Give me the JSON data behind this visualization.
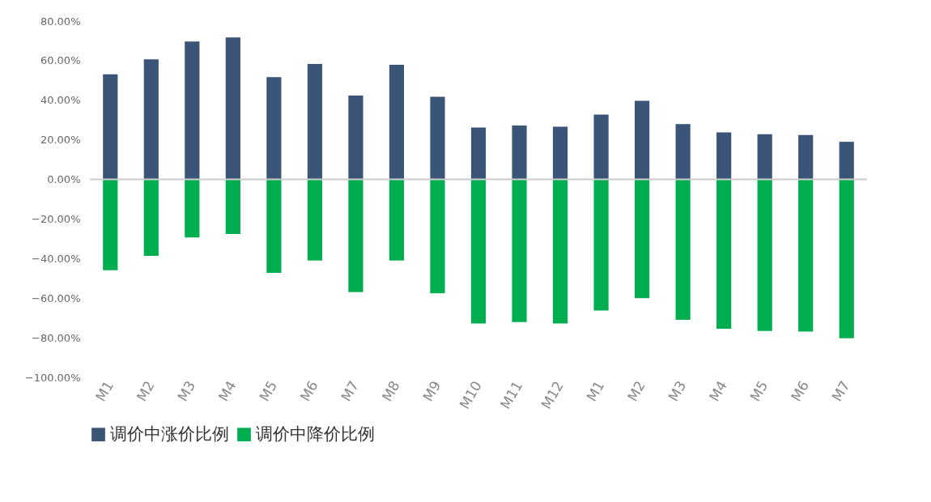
{
  "chart_data": {
    "type": "bar",
    "stacked": true,
    "categories": [
      "M1",
      "M2",
      "M3",
      "M4",
      "M5",
      "M6",
      "M7",
      "M8",
      "M9",
      "M10",
      "M11",
      "M12",
      "M1",
      "M2",
      "M3",
      "M4",
      "M5",
      "M6",
      "M7"
    ],
    "series": [
      {
        "name": "调价中涨价比例",
        "color": "#3a5578",
        "values": [
          53.1,
          60.7,
          69.7,
          71.7,
          51.7,
          58.3,
          42.4,
          57.9,
          41.7,
          26.2,
          27.2,
          26.6,
          32.8,
          39.7,
          27.9,
          23.8,
          22.8,
          22.4,
          19.0
        ]
      },
      {
        "name": "调价中降价比例",
        "color": "#00ae4f",
        "values": [
          -45.9,
          -38.6,
          -29.3,
          -27.6,
          -47.2,
          -41.0,
          -56.9,
          -41.0,
          -57.6,
          -72.8,
          -72.1,
          -72.8,
          -66.2,
          -60.0,
          -71.0,
          -75.5,
          -76.6,
          -76.9,
          -80.3
        ]
      }
    ],
    "ylim": [
      -100,
      80
    ],
    "yticks": [
      {
        "value": -100,
        "label": "−100.00%"
      },
      {
        "value": -80,
        "label": "−80.00%"
      },
      {
        "value": -60,
        "label": "−60.00%"
      },
      {
        "value": -40,
        "label": "−40.00%"
      },
      {
        "value": -20,
        "label": "−20.00%"
      },
      {
        "value": 0,
        "label": "0.00%"
      },
      {
        "value": 20,
        "label": "20.00%"
      },
      {
        "value": 40,
        "label": "40.00%"
      },
      {
        "value": 60,
        "label": "60.00%"
      },
      {
        "value": 80,
        "label": "80.00%"
      }
    ],
    "ref_lines": [
      {
        "axis": "y",
        "value": 0,
        "label": null,
        "color": "#cccccc"
      }
    ],
    "grid": false,
    "legend": "bottom"
  }
}
